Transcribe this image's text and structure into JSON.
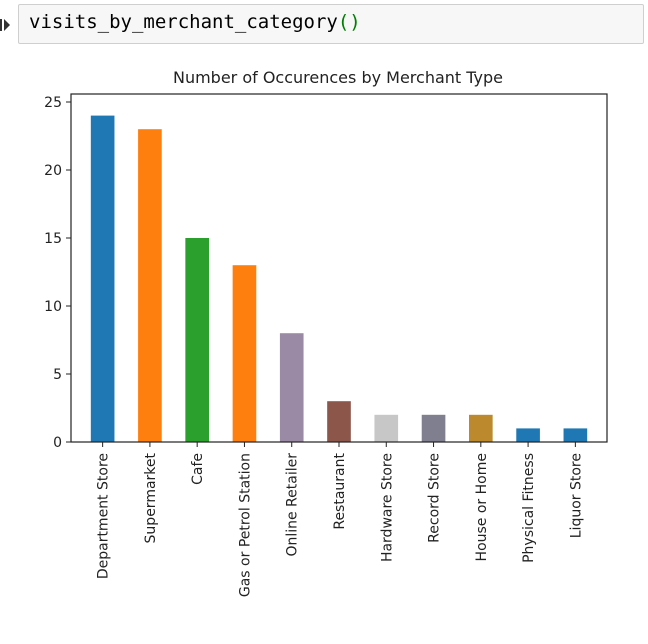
{
  "cell": {
    "code_fn": "visits_by_merchant_category",
    "code_parens": "()"
  },
  "chart_data": {
    "type": "bar",
    "title": "Number of Occurences by Merchant Type",
    "xlabel": "",
    "ylabel": "",
    "ylim": [
      0,
      25
    ],
    "yticks": [
      0,
      5,
      10,
      15,
      20,
      25
    ],
    "categories": [
      "Department Store",
      "Supermarket",
      "Cafe",
      "Gas or Petrol Station",
      "Online Retailer",
      "Restaurant",
      "Hardware Store",
      "Record Store",
      "House or Home",
      "Physical Fitness",
      "Liquor Store"
    ],
    "values": [
      24,
      23,
      15,
      13,
      8,
      3,
      2,
      2,
      2,
      1,
      1
    ],
    "colors": [
      "#1f77b4",
      "#ff7f0e",
      "#2ca02c",
      "#ff7f0e",
      "#9a8aa6",
      "#8c564b",
      "#c7c7c7",
      "#7f7f8f",
      "#bc8a2c",
      "#1f77b4",
      "#1f77b4"
    ],
    "grid": false,
    "legend": "none"
  }
}
